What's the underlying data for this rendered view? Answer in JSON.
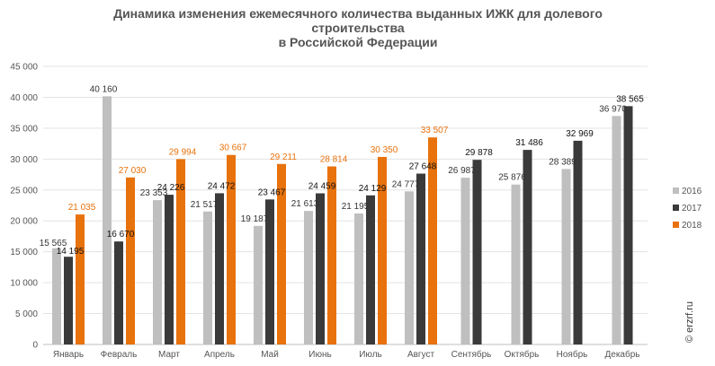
{
  "chart_data": {
    "type": "bar",
    "title_lines": [
      "Динамика изменения ежемесячного количества выданных ИЖК для долевого",
      "строительства",
      "в Российской Федерации"
    ],
    "categories": [
      "Январь",
      "Февраль",
      "Март",
      "Апрель",
      "Май",
      "Июнь",
      "Июль",
      "Август",
      "Сентябрь",
      "Октябрь",
      "Ноябрь",
      "Декабрь"
    ],
    "series": [
      {
        "name": "2016",
        "color": "#bfbfbf",
        "label_color": "#333333",
        "values": [
          15565,
          40160,
          23353,
          21517,
          19187,
          21613,
          21195,
          24777,
          26987,
          25876,
          28389,
          36970
        ],
        "labels": [
          "15 565",
          "40 160",
          "23 353",
          "21 517",
          "19 187",
          "21 613",
          "21 195",
          "24 777",
          "26 987",
          "25 876",
          "28 389",
          "36 970"
        ]
      },
      {
        "name": "2017",
        "color": "#3a3a3a",
        "label_color": "#111111",
        "values": [
          14195,
          16670,
          24226,
          24472,
          23467,
          24459,
          24129,
          27648,
          29878,
          31486,
          32969,
          38565
        ],
        "labels": [
          "14 195",
          "16 670",
          "24 226",
          "24 472",
          "23 467",
          "24 459",
          "24 129",
          "27 648",
          "29 878",
          "31 486",
          "32 969",
          "38 565"
        ]
      },
      {
        "name": "2018",
        "color": "#e8720c",
        "label_color": "#e8720c",
        "values": [
          21035,
          27030,
          29994,
          30667,
          29211,
          28814,
          30350,
          33507,
          null,
          null,
          null,
          null
        ],
        "labels": [
          "21 035",
          "27 030",
          "29 994",
          "30 667",
          "29 211",
          "28 814",
          "30 350",
          "33 507",
          null,
          null,
          null,
          null
        ]
      }
    ],
    "ylim": [
      0,
      45000
    ],
    "yticks": [
      0,
      5000,
      10000,
      15000,
      20000,
      25000,
      30000,
      35000,
      40000,
      45000
    ],
    "ytick_labels": [
      "0",
      "5 000",
      "10 000",
      "15 000",
      "20 000",
      "25 000",
      "30 000",
      "35 000",
      "40 000",
      "45 000"
    ],
    "grid": true,
    "legend_position": "right",
    "watermark": "© erzrf.ru"
  }
}
